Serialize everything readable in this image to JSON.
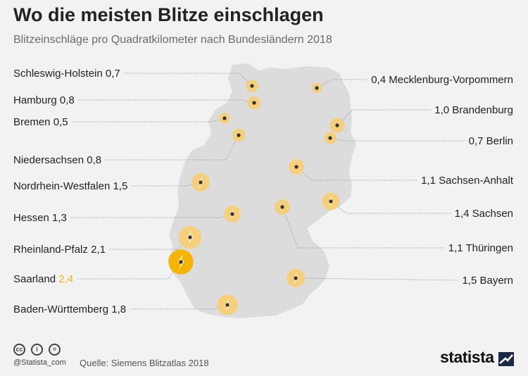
{
  "title": "Wo die meisten Blitze einschlagen",
  "subtitle": "Blitzeinschläge pro Quadratkilometer nach Bundesländern 2018",
  "highlight_color": "#f5b400",
  "bubble_color": "#f6cf7d",
  "map_color": "#dcdcdc",
  "chart_data": {
    "type": "bubble-map",
    "unit": "Blitzeinschläge pro Quadratkilometer",
    "year": 2018,
    "series": [
      {
        "name": "Schleswig-Holstein",
        "value": 0.7
      },
      {
        "name": "Hamburg",
        "value": 0.8
      },
      {
        "name": "Bremen",
        "value": 0.5
      },
      {
        "name": "Niedersachsen",
        "value": 0.8
      },
      {
        "name": "Nordrhein-Westfalen",
        "value": 1.5
      },
      {
        "name": "Hessen",
        "value": 1.3
      },
      {
        "name": "Rheinland-Pfalz",
        "value": 2.1
      },
      {
        "name": "Saarland",
        "value": 2.4
      },
      {
        "name": "Baden-Württemberg",
        "value": 1.8
      },
      {
        "name": "Mecklenburg-Vorpommern",
        "value": 0.4
      },
      {
        "name": "Brandenburg",
        "value": 1.0
      },
      {
        "name": "Berlin",
        "value": 0.7
      },
      {
        "name": "Sachsen-Anhalt",
        "value": 1.1
      },
      {
        "name": "Sachsen",
        "value": 1.4
      },
      {
        "name": "Thüringen",
        "value": 1.1
      },
      {
        "name": "Bayern",
        "value": 1.5
      }
    ],
    "highlight": "Saarland"
  },
  "footer": {
    "handle": "@Statista_com",
    "source": "Quelle: Siemens Blitzatlas 2018",
    "cc_icons": [
      "cc-icon",
      "by-icon",
      "nd-icon"
    ],
    "cc_labels": [
      "cc",
      "i",
      "="
    ]
  },
  "logo": "statista"
}
